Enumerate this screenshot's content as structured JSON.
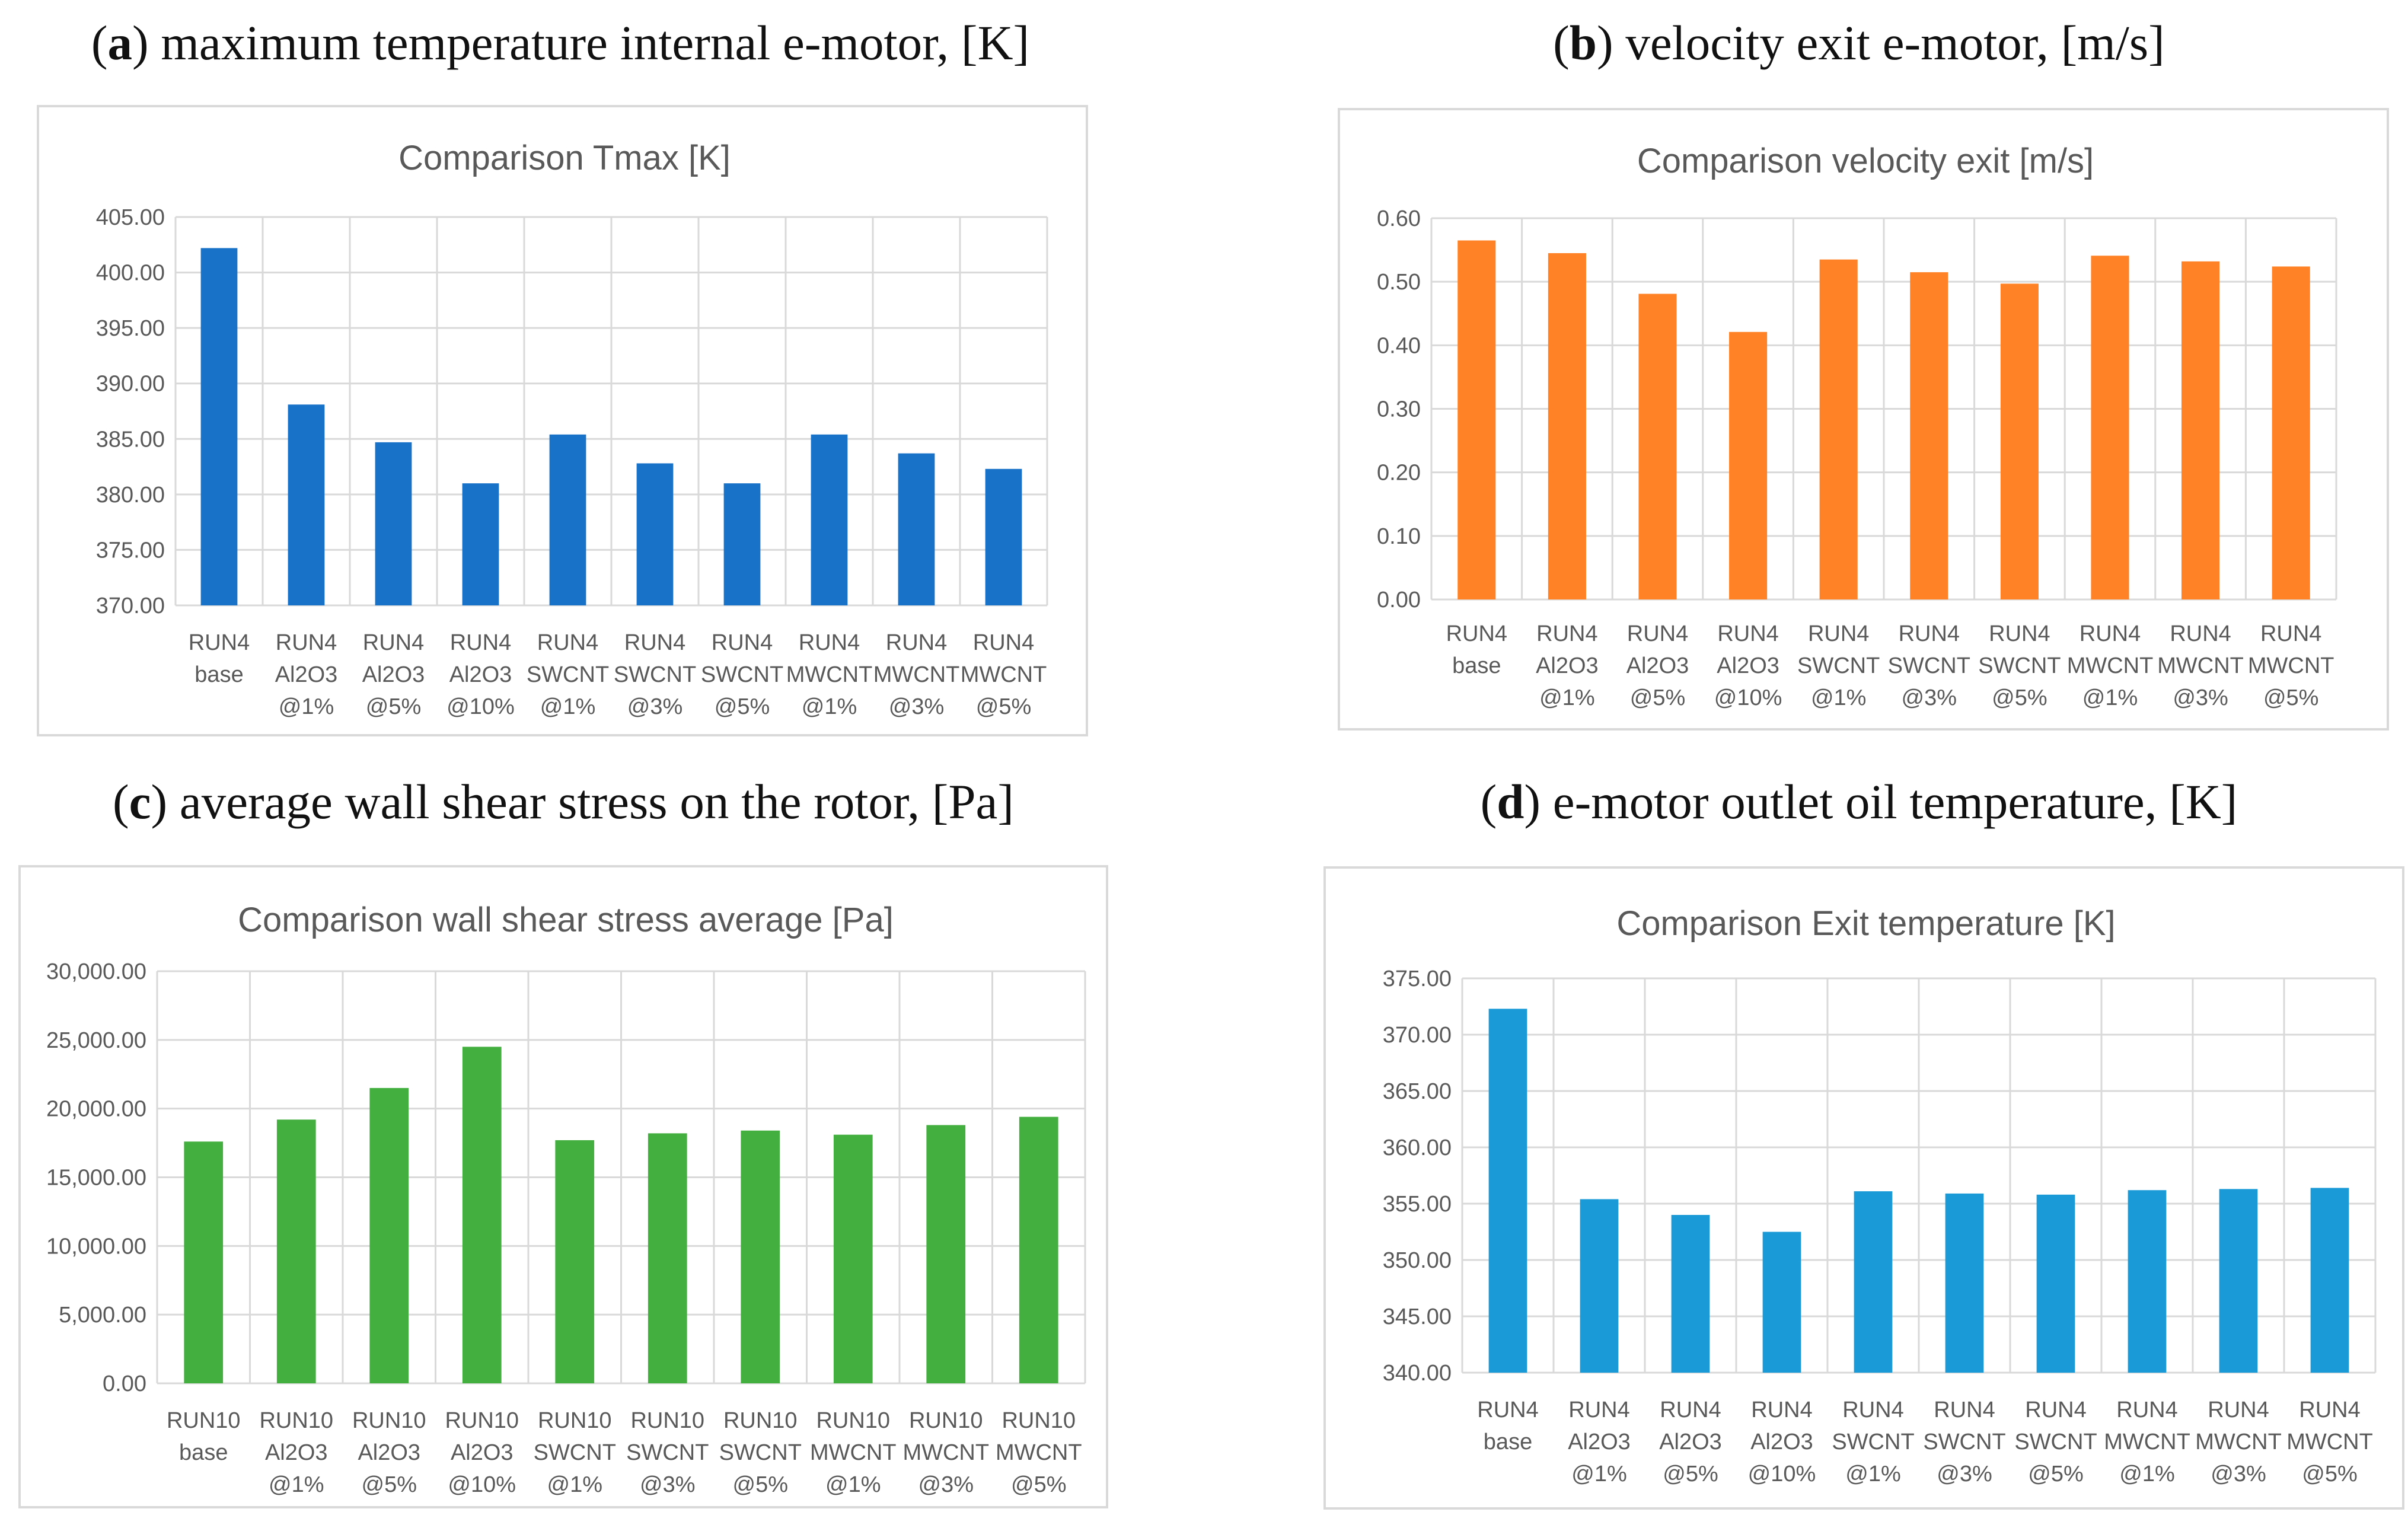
{
  "chart_data": [
    {
      "type": "bar",
      "panel": {
        "letter": "a",
        "caption": "maximum temperature internal e-motor, [K]"
      },
      "title": "Comparison Tmax [K]",
      "categories": [
        [
          "RUN4",
          "base"
        ],
        [
          "RUN4",
          "Al2O3",
          "@1%"
        ],
        [
          "RUN4",
          "Al2O3",
          "@5%"
        ],
        [
          "RUN4",
          "Al2O3",
          "@10%"
        ],
        [
          "RUN4",
          "SWCNT",
          "@1%"
        ],
        [
          "RUN4",
          "SWCNT",
          "@3%"
        ],
        [
          "RUN4",
          "SWCNT",
          "@5%"
        ],
        [
          "RUN4",
          "MWCNT",
          "@1%"
        ],
        [
          "RUN4",
          "MWCNT",
          "@3%"
        ],
        [
          "RUN4",
          "MWCNT",
          "@5%"
        ]
      ],
      "values": [
        402.2,
        388.1,
        384.7,
        381.0,
        385.4,
        382.8,
        381.0,
        385.4,
        383.7,
        382.3
      ],
      "ylim": [
        370,
        405
      ],
      "yticks": [
        370,
        375,
        380,
        385,
        390,
        395,
        400,
        405
      ],
      "ytick_labels": [
        "370.00",
        "375.00",
        "380.00",
        "385.00",
        "390.00",
        "395.00",
        "400.00",
        "405.00"
      ],
      "color": "#1872c8",
      "grid": true,
      "xlabel": "",
      "ylabel": ""
    },
    {
      "type": "bar",
      "panel": {
        "letter": "b",
        "caption": "velocity exit e-motor, [m/s]"
      },
      "title": "Comparison velocity exit [m/s]",
      "categories": [
        [
          "RUN4",
          "base"
        ],
        [
          "RUN4",
          "Al2O3",
          "@1%"
        ],
        [
          "RUN4",
          "Al2O3",
          "@5%"
        ],
        [
          "RUN4",
          "Al2O3",
          "@10%"
        ],
        [
          "RUN4",
          "SWCNT",
          "@1%"
        ],
        [
          "RUN4",
          "SWCNT",
          "@3%"
        ],
        [
          "RUN4",
          "SWCNT",
          "@5%"
        ],
        [
          "RUN4",
          "MWCNT",
          "@1%"
        ],
        [
          "RUN4",
          "MWCNT",
          "@3%"
        ],
        [
          "RUN4",
          "MWCNT",
          "@5%"
        ]
      ],
      "values": [
        0.565,
        0.545,
        0.481,
        0.421,
        0.535,
        0.515,
        0.497,
        0.541,
        0.532,
        0.524
      ],
      "ylim": [
        0,
        0.6
      ],
      "yticks": [
        0,
        0.1,
        0.2,
        0.3,
        0.4,
        0.5,
        0.6
      ],
      "ytick_labels": [
        "0.00",
        "0.10",
        "0.20",
        "0.30",
        "0.40",
        "0.50",
        "0.60"
      ],
      "color": "#ff8226",
      "grid": true,
      "xlabel": "",
      "ylabel": ""
    },
    {
      "type": "bar",
      "panel": {
        "letter": "c",
        "caption": "average wall shear stress on the rotor, [Pa]"
      },
      "title": "Comparison wall shear stress average [Pa]",
      "categories": [
        [
          "RUN10",
          "base"
        ],
        [
          "RUN10",
          "Al2O3",
          "@1%"
        ],
        [
          "RUN10",
          "Al2O3",
          "@5%"
        ],
        [
          "RUN10",
          "Al2O3",
          "@10%"
        ],
        [
          "RUN10",
          "SWCNT",
          "@1%"
        ],
        [
          "RUN10",
          "SWCNT",
          "@3%"
        ],
        [
          "RUN10",
          "SWCNT",
          "@5%"
        ],
        [
          "RUN10",
          "MWCNT",
          "@1%"
        ],
        [
          "RUN10",
          "MWCNT",
          "@3%"
        ],
        [
          "RUN10",
          "MWCNT",
          "@5%"
        ]
      ],
      "values": [
        17600,
        19200,
        21500,
        24500,
        17700,
        18200,
        18400,
        18100,
        18800,
        19400
      ],
      "ylim": [
        0,
        30000
      ],
      "yticks": [
        0,
        5000,
        10000,
        15000,
        20000,
        25000,
        30000
      ],
      "ytick_labels": [
        "0.00",
        "5,000.00",
        "10,000.00",
        "15,000.00",
        "20,000.00",
        "25,000.00",
        "30,000.00"
      ],
      "color": "#43af3f",
      "grid": true,
      "xlabel": "",
      "ylabel": ""
    },
    {
      "type": "bar",
      "panel": {
        "letter": "d",
        "caption": "e-motor outlet oil temperature, [K]"
      },
      "title": "Comparison Exit temperature [K]",
      "categories": [
        [
          "RUN4",
          "base"
        ],
        [
          "RUN4",
          "Al2O3",
          "@1%"
        ],
        [
          "RUN4",
          "Al2O3",
          "@5%"
        ],
        [
          "RUN4",
          "Al2O3",
          "@10%"
        ],
        [
          "RUN4",
          "SWCNT",
          "@1%"
        ],
        [
          "RUN4",
          "SWCNT",
          "@3%"
        ],
        [
          "RUN4",
          "SWCNT",
          "@5%"
        ],
        [
          "RUN4",
          "MWCNT",
          "@1%"
        ],
        [
          "RUN4",
          "MWCNT",
          "@3%"
        ],
        [
          "RUN4",
          "MWCNT",
          "@5%"
        ]
      ],
      "values": [
        372.3,
        355.4,
        354.0,
        352.5,
        356.1,
        355.9,
        355.8,
        356.2,
        356.3,
        356.4
      ],
      "ylim": [
        340,
        375
      ],
      "yticks": [
        340,
        345,
        350,
        355,
        360,
        365,
        370,
        375
      ],
      "ytick_labels": [
        "340.00",
        "345.00",
        "350.00",
        "355.00",
        "360.00",
        "365.00",
        "370.00",
        "375.00"
      ],
      "color": "#1a9bd7",
      "grid": true,
      "xlabel": "",
      "ylabel": ""
    }
  ]
}
